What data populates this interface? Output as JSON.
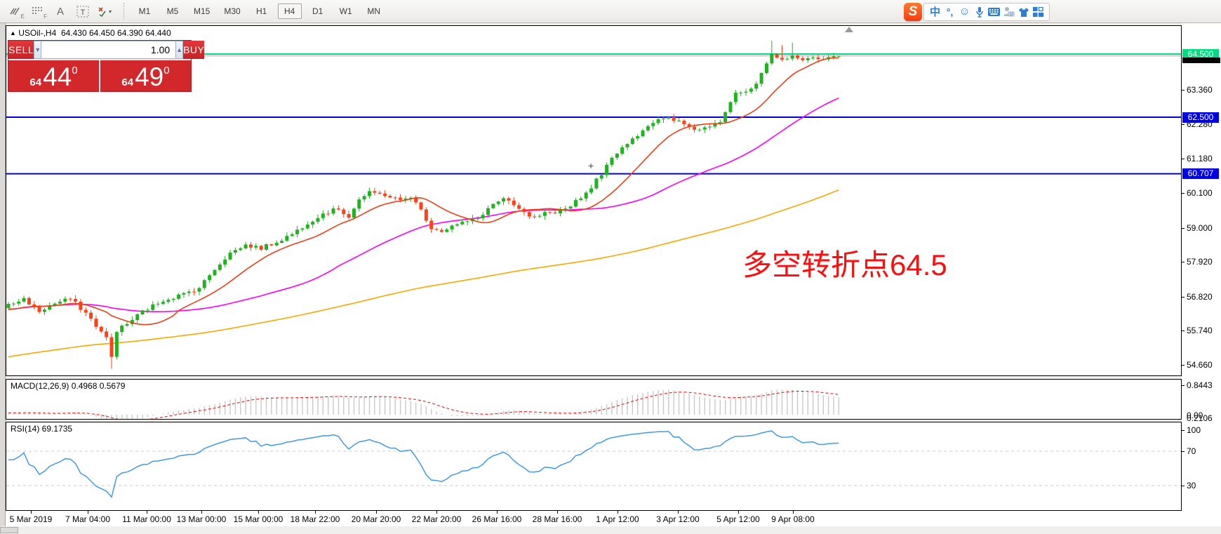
{
  "toolbar": {
    "icons": [
      {
        "name": "indicator-list-icon",
        "letter": "E"
      },
      {
        "name": "indicator-window-icon",
        "letter": "F"
      },
      {
        "name": "text-label-icon",
        "letter": "A"
      },
      {
        "name": "text-box-icon",
        "letter": "T"
      },
      {
        "name": "arrows-tool-icon",
        "letter": ""
      }
    ],
    "timeframes": [
      "M1",
      "M5",
      "M15",
      "M30",
      "H1",
      "H4",
      "D1",
      "W1",
      "MN"
    ],
    "active_timeframe": "H4"
  },
  "ime_bar": {
    "logo": "S",
    "mode": "中",
    "punctuation": "°,",
    "emoji": "☺"
  },
  "chart": {
    "title": {
      "symbol": "USOil-,H4",
      "ohlc_text": "64.430 64.450 64.390 64.440"
    },
    "trade_panel": {
      "sell_label": "SELL",
      "buy_label": "BUY",
      "volume": "1.00",
      "sell_price": {
        "prefix": "64",
        "big": "44",
        "sup": "0"
      },
      "buy_price": {
        "prefix": "64",
        "big": "49",
        "sup": "0"
      }
    },
    "annotation": {
      "text": "多空转折点64.5",
      "color": "#fb0e0e"
    },
    "cross_marker": "+",
    "price_ticks": [
      {
        "label": "63.360",
        "value": 63.36
      },
      {
        "label": "62.280",
        "value": 62.28
      },
      {
        "label": "61.180",
        "value": 61.18
      },
      {
        "label": "60.100",
        "value": 60.1
      },
      {
        "label": "59.000",
        "value": 59.0
      },
      {
        "label": "57.920",
        "value": 57.92
      },
      {
        "label": "56.820",
        "value": 56.82
      },
      {
        "label": "55.740",
        "value": 55.74
      },
      {
        "label": "54.660",
        "value": 54.66
      }
    ],
    "level_badges": [
      {
        "label": "64.500",
        "value": 64.5,
        "color": "#00dc7e"
      },
      {
        "label": "62.500",
        "value": 62.5,
        "color": "#0000e6"
      },
      {
        "label": "60.707",
        "value": 60.707,
        "color": "#0000e6"
      }
    ],
    "time_axis": {
      "labels": [
        "5 Mar 2019",
        "7 Mar 04:00",
        "11 Mar 00:00",
        "13 Mar 00:00",
        "15 Mar 00:00",
        "18 Mar 22:00",
        "20 Mar 20:00",
        "22 Mar 20:00",
        "26 Mar 16:00",
        "28 Mar 16:00",
        "1 Apr 12:00",
        "3 Apr 12:00",
        "5 Apr 12:00",
        "9 Apr 08:00"
      ],
      "x_centers": [
        36,
        117,
        201,
        279,
        360,
        441,
        528,
        614,
        700,
        786,
        872,
        958,
        1044,
        1122
      ]
    }
  },
  "indicators": {
    "macd": {
      "label": "MACD(12,26,9) 0.4968 0.5679",
      "axis_labels": [
        "0.8443",
        "0.00",
        "0.2106"
      ]
    },
    "rsi": {
      "label": "RSI(14) 69.1735",
      "axis_labels": [
        "100",
        "70",
        "30"
      ]
    }
  },
  "chart_data": {
    "type": "candlestick",
    "symbol": "USOil",
    "timeframe": "H4",
    "title": "USOil-,H4",
    "current_candle": {
      "open": 64.43,
      "high": 64.45,
      "low": 64.39,
      "close": 64.44
    },
    "quotes": {
      "bid": 64.44,
      "ask": 64.49
    },
    "horizontal_levels": [
      64.5,
      62.5,
      60.707
    ],
    "y_axis_range": [
      54.28,
      65.37
    ],
    "num_candles": 162,
    "close_anchors": [
      [
        0,
        56.55
      ],
      [
        3,
        56.75
      ],
      [
        6,
        56.35
      ],
      [
        9,
        56.6
      ],
      [
        12,
        56.75
      ],
      [
        15,
        56.3
      ],
      [
        17,
        55.9
      ],
      [
        19,
        55.5
      ],
      [
        20,
        54.9
      ],
      [
        21,
        55.75
      ],
      [
        23,
        55.95
      ],
      [
        26,
        56.35
      ],
      [
        30,
        56.7
      ],
      [
        34,
        56.9
      ],
      [
        37,
        57.1
      ],
      [
        40,
        57.7
      ],
      [
        43,
        58.2
      ],
      [
        46,
        58.45
      ],
      [
        49,
        58.35
      ],
      [
        52,
        58.55
      ],
      [
        55,
        58.8
      ],
      [
        58,
        59.15
      ],
      [
        61,
        59.45
      ],
      [
        64,
        59.6
      ],
      [
        66,
        59.35
      ],
      [
        68,
        59.9
      ],
      [
        70,
        60.1
      ],
      [
        73,
        60.05
      ],
      [
        76,
        59.85
      ],
      [
        78,
        60.0
      ],
      [
        80,
        59.55
      ],
      [
        82,
        59.0
      ],
      [
        84,
        58.9
      ],
      [
        86,
        59.05
      ],
      [
        88,
        59.15
      ],
      [
        91,
        59.3
      ],
      [
        94,
        59.75
      ],
      [
        96,
        59.9
      ],
      [
        98,
        59.7
      ],
      [
        100,
        59.45
      ],
      [
        102,
        59.3
      ],
      [
        104,
        59.45
      ],
      [
        106,
        59.4
      ],
      [
        108,
        59.6
      ],
      [
        110,
        59.85
      ],
      [
        112,
        60.1
      ],
      [
        114,
        60.5
      ],
      [
        116,
        60.95
      ],
      [
        118,
        61.4
      ],
      [
        120,
        61.7
      ],
      [
        122,
        61.95
      ],
      [
        124,
        62.25
      ],
      [
        126,
        62.4
      ],
      [
        128,
        62.45
      ],
      [
        130,
        62.35
      ],
      [
        132,
        62.2
      ],
      [
        134,
        62.1
      ],
      [
        136,
        62.25
      ],
      [
        138,
        62.4
      ],
      [
        140,
        63.0
      ],
      [
        141,
        63.3
      ],
      [
        143,
        63.25
      ],
      [
        145,
        63.55
      ],
      [
        147,
        64.15
      ],
      [
        148,
        64.45
      ],
      [
        150,
        64.3
      ],
      [
        152,
        64.5
      ],
      [
        154,
        64.25
      ],
      [
        156,
        64.45
      ],
      [
        158,
        64.3
      ],
      [
        160,
        64.43
      ],
      [
        161,
        64.44
      ]
    ],
    "prehistory_anchors": [
      [
        -150,
        52.7
      ],
      [
        -110,
        54.0
      ],
      [
        -75,
        54.3
      ],
      [
        -45,
        55.6
      ],
      [
        -20,
        56.9
      ],
      [
        -8,
        56.3
      ],
      [
        -1,
        56.5
      ]
    ],
    "overrides": {
      "20": {
        "low": 54.53
      },
      "148": {
        "high": 64.92
      },
      "150": {
        "high": 64.78
      },
      "152": {
        "high": 64.86
      },
      "161": {
        "open": 64.43,
        "high": 64.45,
        "low": 64.39,
        "close": 64.44
      }
    },
    "moving_averages": [
      {
        "name": "MA fast",
        "period": 13,
        "color": "#ef4017"
      },
      {
        "name": "MA mid",
        "period": 44,
        "color": "#ff00ff"
      },
      {
        "name": "MA slow",
        "period": 140,
        "color": "#ffa500"
      }
    ],
    "macd": {
      "fast": 12,
      "slow": 26,
      "signal": 9,
      "value": 0.4968,
      "signal_value": 0.5679,
      "axis_max": 0.8443,
      "hist_color": "#c9c9c9",
      "signal_color": "#ff0000"
    },
    "rsi": {
      "period": 14,
      "value": 69.1735,
      "levels": [
        70,
        30
      ],
      "color": "#3e9be9"
    },
    "colors": {
      "up": "#21b221",
      "down": "#ff4117",
      "level_green": "#00dc7e",
      "level_blue": "#0000e6",
      "bid_line": "#b0b0b0"
    }
  }
}
